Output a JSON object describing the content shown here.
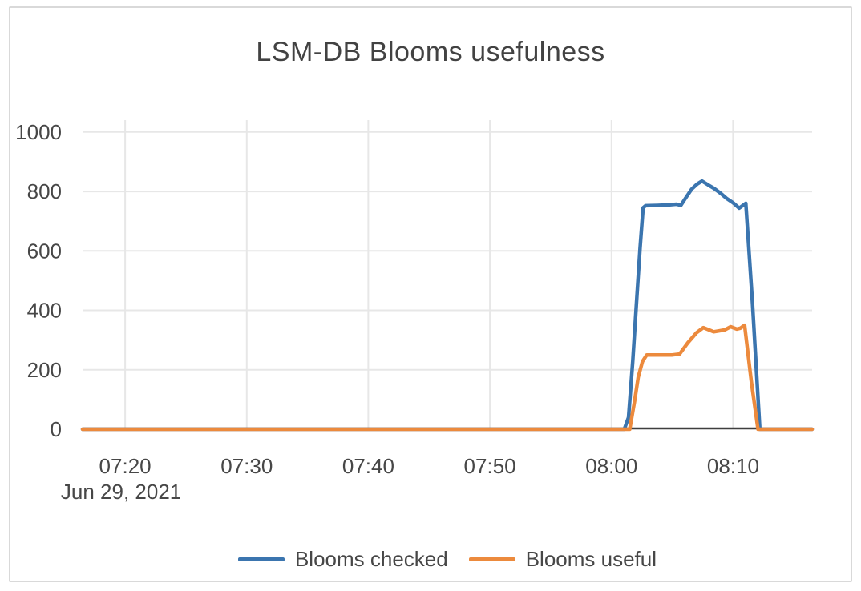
{
  "chart_data": {
    "type": "line",
    "title": "LSM-DB Blooms usefulness",
    "grid": true,
    "legend_position": "bottom-center",
    "background_color": "#ffffff",
    "border_color": "#d9d9d9",
    "text_color": "#474747",
    "x_axis": {
      "kind": "time",
      "date_label": "Jun 29, 2021",
      "tick_labels": [
        "07:20",
        "07:30",
        "07:40",
        "07:50",
        "08:00",
        "08:10"
      ],
      "tick_minutes": [
        20,
        30,
        40,
        50,
        60,
        70
      ],
      "range_minutes_after_0700": [
        16.5,
        76.5
      ]
    },
    "y_axis": {
      "tick_labels": [
        "0",
        "200",
        "400",
        "600",
        "800",
        "1000"
      ],
      "tick_values": [
        0,
        200,
        400,
        600,
        800,
        1000
      ],
      "range": [
        0,
        1040
      ]
    },
    "series": [
      {
        "name": "Blooms checked",
        "color": "#3b75af",
        "points": [
          [
            16.5,
            0
          ],
          [
            55.0,
            0
          ],
          [
            61.05,
            0
          ],
          [
            61.4,
            40
          ],
          [
            61.75,
            230
          ],
          [
            62.05,
            420
          ],
          [
            62.35,
            610
          ],
          [
            62.6,
            745
          ],
          [
            62.8,
            752
          ],
          [
            63.8,
            753
          ],
          [
            64.8,
            755
          ],
          [
            65.35,
            757
          ],
          [
            65.7,
            753
          ],
          [
            66.1,
            778
          ],
          [
            66.6,
            808
          ],
          [
            67.05,
            825
          ],
          [
            67.45,
            835
          ],
          [
            67.95,
            822
          ],
          [
            68.45,
            810
          ],
          [
            69.0,
            793
          ],
          [
            69.45,
            777
          ],
          [
            70.0,
            762
          ],
          [
            70.5,
            744
          ],
          [
            71.05,
            760
          ],
          [
            71.6,
            420
          ],
          [
            72.2,
            0
          ],
          [
            76.5,
            0
          ]
        ]
      },
      {
        "name": "Blooms useful",
        "color": "#ec8a3d",
        "points": [
          [
            16.5,
            0
          ],
          [
            55.0,
            0
          ],
          [
            61.5,
            0
          ],
          [
            61.9,
            95
          ],
          [
            62.2,
            175
          ],
          [
            62.55,
            228
          ],
          [
            62.9,
            250
          ],
          [
            64.0,
            250
          ],
          [
            65.0,
            250
          ],
          [
            65.6,
            253
          ],
          [
            66.3,
            292
          ],
          [
            67.0,
            325
          ],
          [
            67.55,
            342
          ],
          [
            68.4,
            328
          ],
          [
            69.3,
            334
          ],
          [
            69.8,
            345
          ],
          [
            70.3,
            337
          ],
          [
            70.6,
            340
          ],
          [
            70.95,
            350
          ],
          [
            71.5,
            160
          ],
          [
            72.05,
            0
          ],
          [
            76.5,
            0
          ]
        ]
      }
    ]
  }
}
